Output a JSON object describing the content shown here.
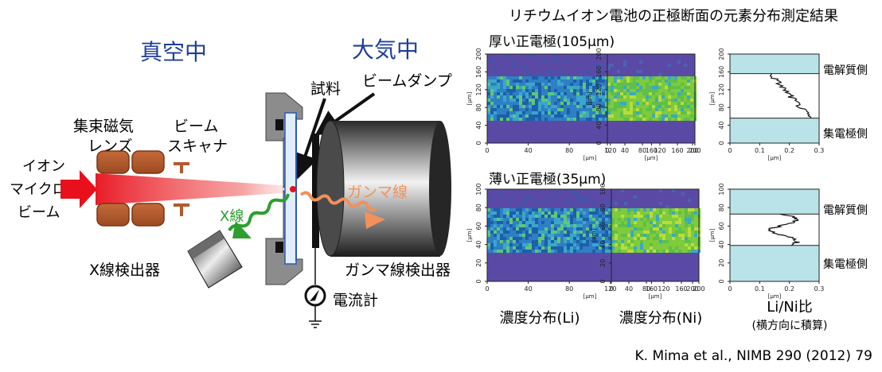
{
  "diagram": {
    "vacuum_label": "真空中",
    "air_label": "大気中",
    "sample_label": "試料",
    "beam_dump_label": "ビームダンプ",
    "lens_label_1": "集束磁気",
    "lens_label_2": "レンズ",
    "scanner_label_1": "ビーム",
    "scanner_label_2": "スキャナ",
    "ion_label_1": "イオン",
    "ion_label_2": "マイクロ",
    "ion_label_3": "ビーム",
    "xray_label": "X線",
    "gamma_label": "ガンマ線",
    "xray_detector_label": "X線検出器",
    "gamma_detector_label": "ガンマ線検出器",
    "ammeter_label": "電流計",
    "colors": {
      "vacuum": "#1f3f9a",
      "lens": "#b3592e",
      "beam": "#e8101c",
      "xray": "#2e9e2e",
      "gamma": "#f2915a",
      "cylinder": "#333333"
    }
  },
  "results": {
    "title": "リチウムイオン電池の正極断面の元素分布測定結果",
    "thick_label": "厚い正電極(105μm)",
    "thin_label": "薄い正電極(35μm)",
    "col_li": "濃度分布(Li)",
    "col_ni": "濃度分布(Ni)",
    "col_ratio_1": "Li/Ni比",
    "col_ratio_2": "(横方向に積算)",
    "electrolyte_label": "電解質側",
    "collector_label": "集電極側",
    "axis_unit": "[μm]",
    "x_ticks_map": [
      "0",
      "40",
      "80",
      "120",
      "160",
      "200"
    ],
    "y_ticks_map": [
      "0",
      "40",
      "80",
      "120",
      "160",
      "200"
    ],
    "y_ticks_thin": [
      "0",
      "20",
      "40",
      "60",
      "80",
      "100"
    ],
    "x_ticks_ratio": [
      "0",
      "0.1",
      "0.2",
      "0.3"
    ],
    "ratio_fill": "#b9e3e8",
    "heatmap_bg": "#5b4aa5"
  },
  "citation": "K. Mima et al., NIMB 290 (2012) 79"
}
